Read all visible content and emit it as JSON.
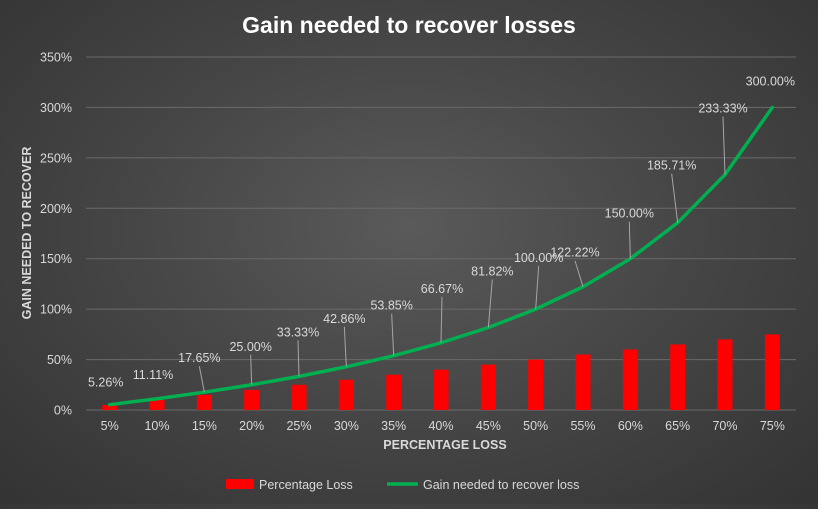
{
  "colors": {
    "bar": "#ff0000",
    "line": "#00b050",
    "text": "#d9d9d9",
    "title": "#ffffff",
    "grid": "#6a6a6a"
  },
  "chart_data": {
    "type": "bar",
    "title": "Gain needed to recover losses",
    "xlabel": "PERCENTAGE LOSS",
    "ylabel": "GAIN NEEDED TO RECOVER",
    "ylim": [
      0,
      350
    ],
    "yticks": [
      "0%",
      "50%",
      "100%",
      "150%",
      "200%",
      "250%",
      "300%",
      "350%"
    ],
    "grid": true,
    "legend_position": "bottom",
    "categories": [
      "5%",
      "10%",
      "15%",
      "20%",
      "25%",
      "30%",
      "35%",
      "40%",
      "45%",
      "50%",
      "55%",
      "60%",
      "65%",
      "70%",
      "75%"
    ],
    "series": [
      {
        "name": "Percentage Loss",
        "type": "bar",
        "values": [
          5,
          10,
          15,
          20,
          25,
          30,
          35,
          40,
          45,
          50,
          55,
          60,
          65,
          70,
          75
        ]
      },
      {
        "name": "Gain needed to recover loss",
        "type": "line",
        "values": [
          5.26,
          11.11,
          17.65,
          25.0,
          33.33,
          42.86,
          53.85,
          66.67,
          81.82,
          100.0,
          122.22,
          150.0,
          185.71,
          233.33,
          300.0
        ],
        "labels": [
          "5.26%",
          "11.11%",
          "17.65%",
          "25.00%",
          "33.33%",
          "42.86%",
          "53.85%",
          "66.67%",
          "81.82%",
          "100.00%",
          "122.22%",
          "150.00%",
          "185.71%",
          "233.33%",
          "300.00%"
        ]
      }
    ]
  }
}
